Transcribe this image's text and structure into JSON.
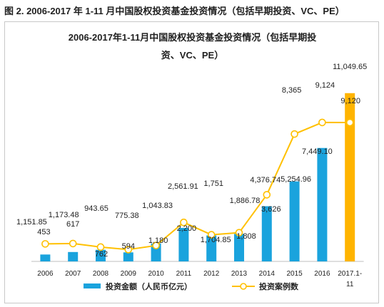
{
  "caption": "图 2. 2006-2017 年 1-11 月中国股权投资基金投资情况（包括早期投资、VC、PE）",
  "chart_data": {
    "type": "bar",
    "title_line1": "2006-2017年1-11月中国股权投资基金投资情况（包括早期投",
    "title_line2": "资、VC、PE）",
    "categories": [
      "2006",
      "2007",
      "2008",
      "2009",
      "2010",
      "2011",
      "2012",
      "2013",
      "2014",
      "2015",
      "2016",
      "2017.1-11"
    ],
    "category_lines": [
      [
        "2006"
      ],
      [
        "2007"
      ],
      [
        "2008"
      ],
      [
        "2009"
      ],
      [
        "2010"
      ],
      [
        "2011"
      ],
      [
        "2012"
      ],
      [
        "2013"
      ],
      [
        "2014"
      ],
      [
        "2015"
      ],
      [
        "2016"
      ],
      [
        "2017.1-",
        "11"
      ]
    ],
    "series": [
      {
        "name": "投资金额（人民币亿元）",
        "kind": "bar",
        "values": [
          453,
          617,
          762,
          594,
          1180,
          2200,
          1704.85,
          1808,
          3626,
          5254.96,
          7449.1,
          11049.65
        ],
        "labels": [
          "453",
          "617",
          "762",
          "594",
          "1,180",
          "2,200",
          "1,704.85",
          "1,808",
          "3,626",
          "5,254.96",
          "7,449.10",
          "11,049.65"
        ],
        "color": "#1aa3dd",
        "highlight_color": "#ffb400"
      },
      {
        "name": "投资案例数",
        "kind": "line",
        "values": [
          1151.85,
          1173.48,
          943.65,
          775.38,
          1043.83,
          2561.91,
          1751,
          1886.78,
          4376.74,
          8365,
          9124,
          9120
        ],
        "labels": [
          "1,151.85",
          "1,173.48",
          "943.65",
          "775.38",
          "1,043.83",
          "2,561.91",
          "1,751",
          "1,886.78",
          "4,376.74",
          "8,365",
          "9,124",
          "9,120"
        ],
        "color": "#ffc000"
      }
    ]
  }
}
